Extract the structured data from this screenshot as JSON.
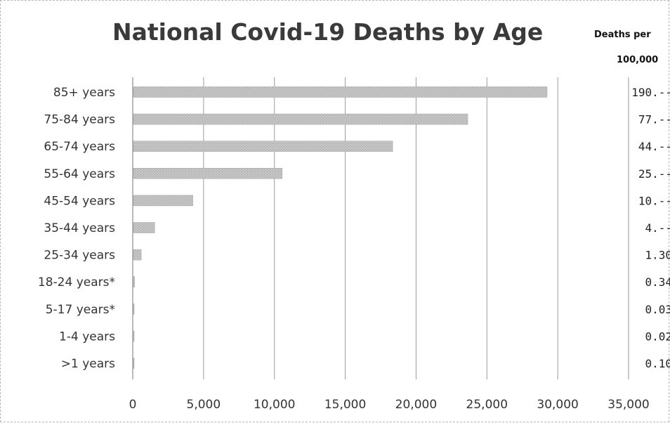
{
  "chart_data": {
    "type": "bar",
    "orientation": "horizontal",
    "title": "National Covid-19 Deaths by Age",
    "categories": [
      "85+ years",
      "75-84 years",
      "65-74 years",
      "55-64 years",
      "45-54 years",
      "35-44 years",
      "25-34 years",
      "18-24 years*",
      "5-17 years*",
      "1-4 years",
      ">1 years"
    ],
    "values": [
      29200,
      23600,
      18300,
      10500,
      4200,
      1500,
      550,
      80,
      15,
      5,
      10
    ],
    "xlim": [
      0,
      35000
    ],
    "x_ticks": [
      "0",
      "5,000",
      "10,000",
      "15,000",
      "20,000",
      "25,000",
      "30,000",
      "35,000"
    ],
    "xlabel": "",
    "ylabel": "",
    "grid": "vertical",
    "bar_color": "#c4c4c4",
    "side_column": {
      "header_line1": "Deaths per",
      "header_line2": "100,000",
      "values": [
        "190.--",
        "77.--",
        "44.--",
        "25.--",
        "10.--",
        "4.--",
        "1.30",
        "0.34",
        "0.03",
        "0.02",
        "0.10"
      ]
    }
  }
}
